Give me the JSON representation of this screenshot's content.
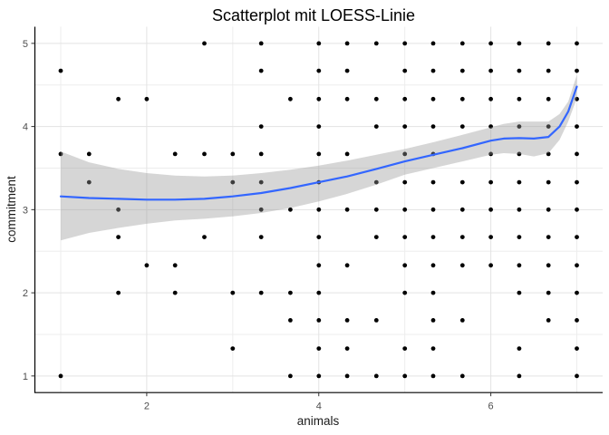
{
  "title": "Scatterplot mit LOESS-Linie",
  "colors": {
    "point": "#000000",
    "loess_line": "#3366FF",
    "confidence_band": "#999999",
    "band_opacity": 0.4,
    "grid_major": "#e3e3e3",
    "grid_minor": "#ededed",
    "axis_line": "#000000",
    "tick_text": "#4d4d4d",
    "background": "#ffffff"
  },
  "chart_data": {
    "type": "scatter",
    "title": "Scatterplot mit LOESS-Linie",
    "xlabel": "animals",
    "ylabel": "commitment",
    "xlim": [
      0.7,
      7.3
    ],
    "ylim": [
      0.8,
      5.2
    ],
    "x_ticks": [
      2,
      4,
      6
    ],
    "x_minor_gridlines": [
      1,
      3,
      5,
      7
    ],
    "y_ticks": [
      1,
      2,
      3,
      4,
      5
    ],
    "y_minor_gridlines": [
      1.5,
      2.5,
      3.5,
      4.5
    ],
    "grid": "major and minor, light gray on white",
    "legend_position": "none",
    "smoother": "LOESS with 95% confidence band",
    "point_rows": [
      {
        "y": 5.0,
        "x": [
          2.67,
          3.33,
          4,
          4.33,
          4.67,
          5,
          5.33,
          5.67,
          6,
          6.33,
          6.67,
          7
        ]
      },
      {
        "y": 4.67,
        "x": [
          1,
          3.33,
          4,
          4.33,
          5,
          5.33,
          5.67,
          6,
          6.33,
          6.67,
          7
        ]
      },
      {
        "y": 4.33,
        "x": [
          1.67,
          2,
          3.67,
          4,
          4.33,
          4.67,
          5,
          5.33,
          5.67,
          6,
          6.33,
          6.67,
          7
        ]
      },
      {
        "y": 4.0,
        "x": [
          3.33,
          4,
          4.67,
          5,
          5.33,
          5.67,
          6,
          6.33,
          6.67,
          7
        ]
      },
      {
        "y": 3.67,
        "x": [
          1,
          1.33,
          2.33,
          2.67,
          3,
          3.33,
          4,
          4.33,
          5,
          5.33,
          6,
          6.33,
          6.67,
          7
        ]
      },
      {
        "y": 3.33,
        "x": [
          1.33,
          3,
          3.33,
          4,
          4.67,
          5,
          5.33,
          5.67,
          6,
          6.33,
          6.67,
          7
        ]
      },
      {
        "y": 3.0,
        "x": [
          1.67,
          3.33,
          3.67,
          4,
          4.33,
          4.67,
          5,
          5.33,
          5.67,
          6,
          6.33,
          6.67,
          7
        ]
      },
      {
        "y": 2.67,
        "x": [
          1.67,
          2.67,
          3.33,
          4,
          4.67,
          5,
          5.33,
          5.67,
          6,
          6.33,
          6.67,
          7
        ]
      },
      {
        "y": 2.33,
        "x": [
          2,
          2.33,
          4,
          4.33,
          5,
          5.33,
          5.67,
          6,
          6.33,
          6.67,
          7
        ]
      },
      {
        "y": 2.0,
        "x": [
          1.67,
          2.33,
          3,
          3.33,
          3.67,
          4,
          5,
          5.33,
          6.33,
          6.67,
          7
        ]
      },
      {
        "y": 1.67,
        "x": [
          3.67,
          4,
          4.33,
          4.67,
          5.33,
          5.67,
          6.67,
          7
        ]
      },
      {
        "y": 1.33,
        "x": [
          3,
          4,
          4.33,
          5,
          5.33,
          6.33,
          7
        ]
      },
      {
        "y": 1.0,
        "x": [
          1,
          3.67,
          4,
          4.33,
          4.67,
          5,
          5.33,
          5.67,
          6.33,
          7
        ]
      }
    ],
    "loess": {
      "x": [
        1,
        1.33,
        1.67,
        2,
        2.33,
        2.67,
        3,
        3.33,
        3.67,
        4,
        4.33,
        4.67,
        5,
        5.33,
        5.67,
        6,
        6.15,
        6.33,
        6.5,
        6.67,
        6.8,
        6.9,
        7
      ],
      "y": [
        3.16,
        3.14,
        3.13,
        3.12,
        3.12,
        3.13,
        3.16,
        3.2,
        3.26,
        3.33,
        3.4,
        3.49,
        3.58,
        3.66,
        3.74,
        3.83,
        3.855,
        3.86,
        3.855,
        3.875,
        4.0,
        4.18,
        4.48
      ],
      "upper": [
        3.7,
        3.57,
        3.49,
        3.44,
        3.41,
        3.4,
        3.41,
        3.44,
        3.48,
        3.53,
        3.59,
        3.66,
        3.73,
        3.81,
        3.9,
        3.99,
        4.03,
        4.06,
        4.06,
        4.06,
        4.15,
        4.3,
        4.62
      ],
      "lower": [
        2.63,
        2.72,
        2.78,
        2.83,
        2.87,
        2.89,
        2.92,
        2.96,
        3.02,
        3.1,
        3.19,
        3.3,
        3.42,
        3.5,
        3.58,
        3.66,
        3.68,
        3.67,
        3.64,
        3.68,
        3.84,
        4.06,
        4.34
      ]
    }
  }
}
